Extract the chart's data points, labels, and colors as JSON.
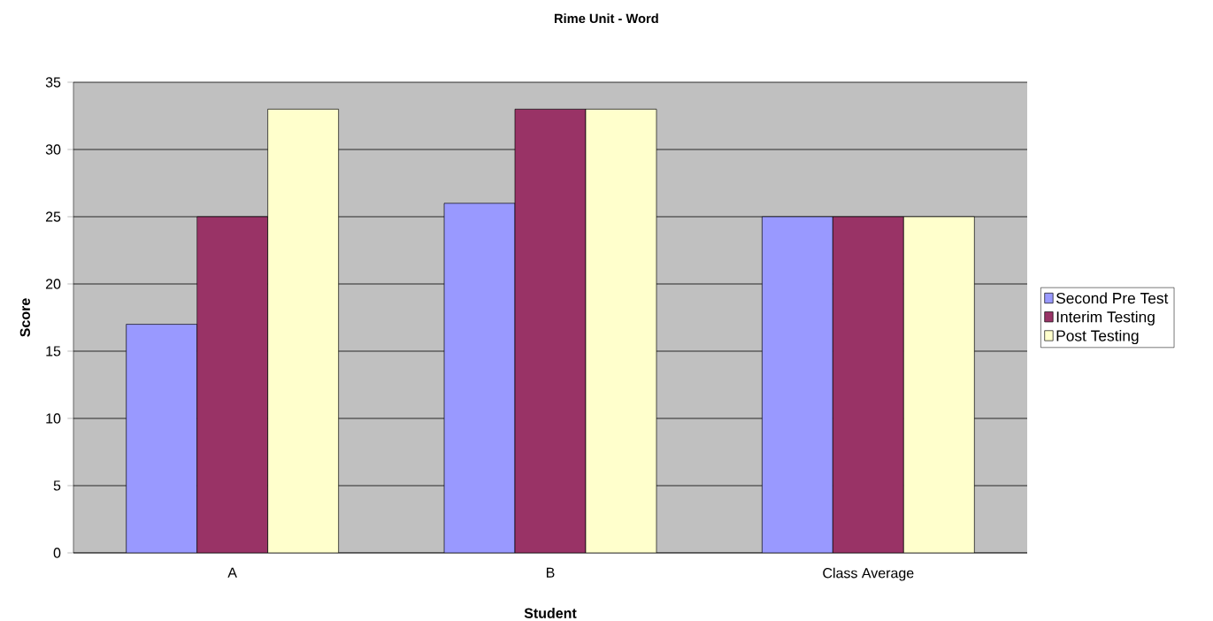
{
  "chart_data": {
    "type": "bar",
    "title": "Rime Unit - Word",
    "xlabel": "Student",
    "ylabel": "Score",
    "categories": [
      "A",
      "B",
      "Class Average"
    ],
    "series": [
      {
        "name": "Second Pre Test",
        "color": "#9999ff",
        "values": [
          17,
          26,
          25
        ]
      },
      {
        "name": "Interim Testing",
        "color": "#993366",
        "values": [
          25,
          33,
          25
        ]
      },
      {
        "name": "Post Testing",
        "color": "#ffffcc",
        "values": [
          33,
          33,
          25
        ]
      }
    ],
    "ylim": [
      0,
      35
    ],
    "yticks": [
      0,
      5,
      10,
      15,
      20,
      25,
      30,
      35
    ],
    "grid": "y",
    "legend": "right"
  }
}
